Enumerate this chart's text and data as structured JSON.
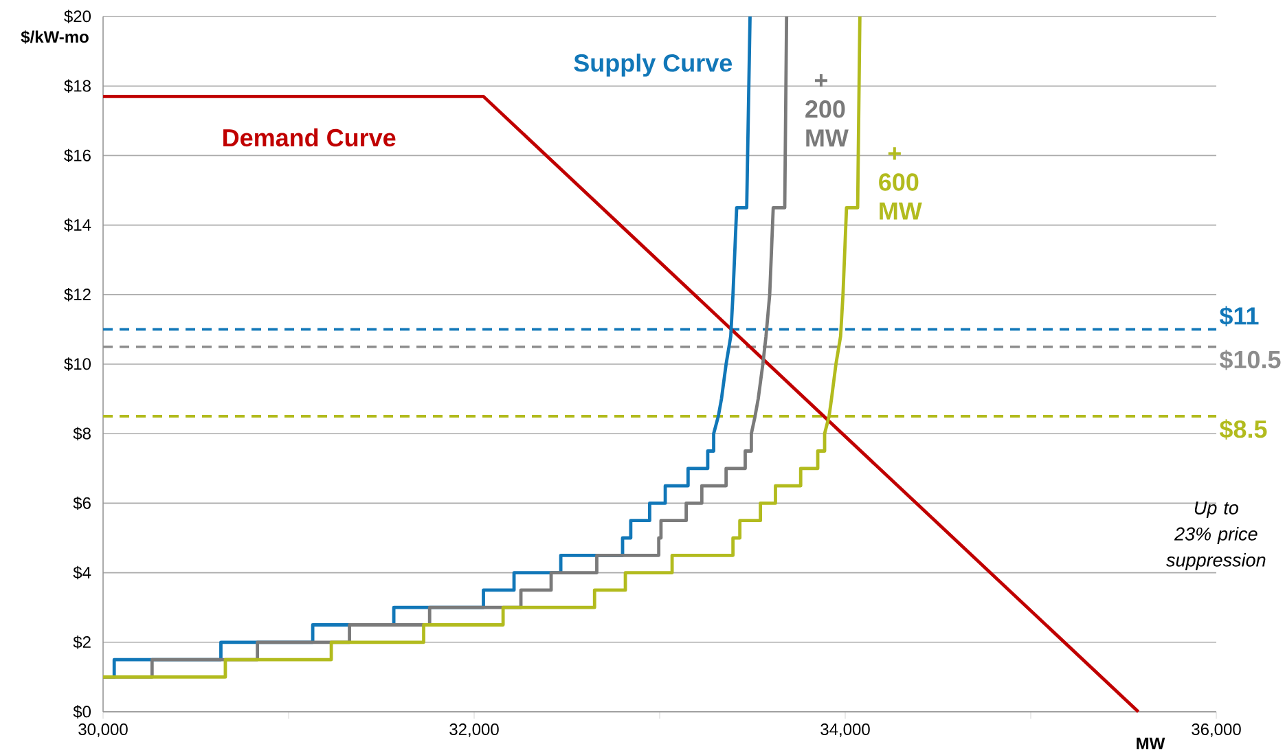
{
  "chart_data": {
    "type": "line",
    "xlabel": "MW",
    "ylabel": "$/kW-mo",
    "xlim": [
      30000,
      36000
    ],
    "ylim": [
      0,
      20
    ],
    "xticks": [
      {
        "value": 30000,
        "label": "30,000"
      },
      {
        "value": 31000,
        "label": null
      },
      {
        "value": 32000,
        "label": "32,000"
      },
      {
        "value": 33000,
        "label": null
      },
      {
        "value": 34000,
        "label": "34,000"
      },
      {
        "value": 35000,
        "label": null
      },
      {
        "value": 36000,
        "label": "36,000"
      }
    ],
    "yticks": [
      {
        "value": 0,
        "label": "$0"
      },
      {
        "value": 2,
        "label": "$2"
      },
      {
        "value": 4,
        "label": "$4"
      },
      {
        "value": 6,
        "label": "$6"
      },
      {
        "value": 8,
        "label": "$8"
      },
      {
        "value": 10,
        "label": "$10"
      },
      {
        "value": 12,
        "label": "$12"
      },
      {
        "value": 14,
        "label": "$14"
      },
      {
        "value": 16,
        "label": "$16"
      },
      {
        "value": 18,
        "label": "$18"
      },
      {
        "value": 20,
        "label": "$20"
      }
    ],
    "grid": "y",
    "marker": "none",
    "line_style": "solid",
    "series": [
      {
        "name": "Demand Curve",
        "color": "#c00000",
        "x": [
          30000,
          32050,
          35580
        ],
        "values": [
          17.7,
          17.7,
          0
        ]
      },
      {
        "name": "Supply Curve",
        "color": "#1177b8",
        "x": [
          30000,
          30060,
          30060,
          30635,
          30635,
          31130,
          31130,
          31567,
          31567,
          32050,
          32050,
          32215,
          32215,
          32467,
          32467,
          32800,
          32800,
          32844,
          32844,
          32946,
          32946,
          33030,
          33030,
          33153,
          33153,
          33259,
          33259,
          33291,
          33291,
          33316,
          33333,
          33358,
          33383,
          33395,
          33415,
          33469,
          33487
        ],
        "values": [
          1.0,
          1.0,
          1.5,
          1.5,
          2.0,
          2.0,
          2.5,
          2.5,
          3.0,
          3.0,
          3.5,
          3.5,
          4.0,
          4.0,
          4.5,
          4.5,
          5.0,
          5.0,
          5.5,
          5.5,
          6.0,
          6.0,
          6.5,
          6.5,
          7.0,
          7.0,
          7.5,
          7.5,
          8.0,
          8.5,
          9.0,
          10.0,
          10.8,
          12.0,
          14.5,
          14.5,
          20
        ]
      },
      {
        "name": "+ 200 MW",
        "color": "#7a7a7a",
        "x": [
          30000,
          30264,
          30264,
          30832,
          30832,
          31328,
          31328,
          31760,
          31760,
          32252,
          32252,
          32415,
          32415,
          32661,
          32661,
          32995,
          32995,
          33007,
          33007,
          33143,
          33143,
          33227,
          33227,
          33358,
          33358,
          33461,
          33461,
          33494,
          33494,
          33514,
          33531,
          33556,
          33573,
          33593,
          33612,
          33674,
          33684
        ],
        "values": [
          1.0,
          1.0,
          1.5,
          1.5,
          2.0,
          2.0,
          2.5,
          2.5,
          3.0,
          3.0,
          3.5,
          3.5,
          4.0,
          4.0,
          4.5,
          4.5,
          5.0,
          5.0,
          5.5,
          5.5,
          6.0,
          6.0,
          6.5,
          6.5,
          7.0,
          7.0,
          7.5,
          7.5,
          8.0,
          8.5,
          9.0,
          10.0,
          10.8,
          12.0,
          14.5,
          14.5,
          20
        ]
      },
      {
        "name": "+ 600 MW",
        "color": "#b2bb1e",
        "x": [
          30000,
          30659,
          30659,
          31230,
          31230,
          31728,
          31728,
          32156,
          32156,
          32649,
          32649,
          32815,
          32815,
          33067,
          33067,
          33395,
          33395,
          33432,
          33432,
          33543,
          33543,
          33624,
          33624,
          33760,
          33760,
          33852,
          33852,
          33889,
          33889,
          33913,
          33926,
          33950,
          33975,
          33988,
          34007,
          34067,
          34079
        ],
        "values": [
          1.0,
          1.0,
          1.5,
          1.5,
          2.0,
          2.0,
          2.5,
          2.5,
          3.0,
          3.0,
          3.5,
          3.5,
          4.0,
          4.0,
          4.5,
          4.5,
          5.0,
          5.0,
          5.5,
          5.5,
          6.0,
          6.0,
          6.5,
          6.5,
          7.0,
          7.0,
          7.5,
          7.5,
          8.0,
          8.5,
          9.0,
          10.0,
          10.8,
          12.0,
          14.5,
          14.5,
          20
        ]
      }
    ],
    "ref_lines": [
      {
        "axis": "y",
        "value": 11,
        "label": "$11",
        "color": "#1177b8",
        "line_style": "dashed"
      },
      {
        "axis": "y",
        "value": 10.5,
        "label": "$10.5",
        "color": "#8c8c8c",
        "line_style": "dashed"
      },
      {
        "axis": "y",
        "value": 8.5,
        "label": "$8.5",
        "color": "#b2bb1e",
        "line_style": "dashed"
      }
    ],
    "annotations": [
      "Up to 23% price suppression"
    ]
  }
}
